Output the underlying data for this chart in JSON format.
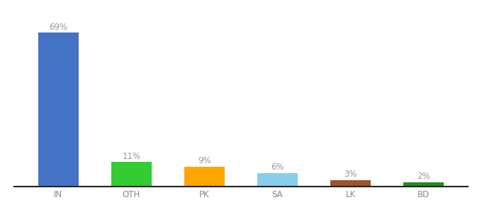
{
  "categories": [
    "IN",
    "OTH",
    "PK",
    "SA",
    "LK",
    "BD"
  ],
  "values": [
    69,
    11,
    9,
    6,
    3,
    2
  ],
  "labels": [
    "69%",
    "11%",
    "9%",
    "6%",
    "3%",
    "2%"
  ],
  "bar_colors": [
    "#4472C4",
    "#33CC33",
    "#FFA500",
    "#87CEEB",
    "#A0522D",
    "#228B22"
  ],
  "background_color": "#ffffff",
  "ylim": [
    0,
    77
  ],
  "label_fontsize": 8.5,
  "tick_fontsize": 8.5,
  "label_color": "#999999",
  "tick_color": "#888888",
  "spine_color": "#222222",
  "bar_width": 0.55
}
